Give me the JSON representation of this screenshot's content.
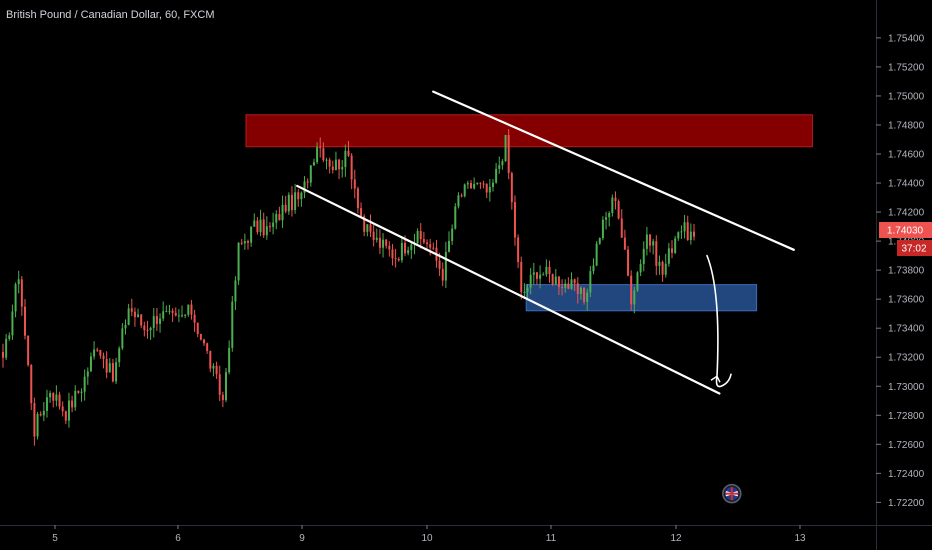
{
  "chart_data": {
    "type": "candlestick",
    "title": "British Pound / Canadian Dollar, 60, FXCM",
    "ylim": [
      1.7212,
      1.7553
    ],
    "y_ticks": [
      "1.75400",
      "1.75200",
      "1.75000",
      "1.74800",
      "1.74600",
      "1.74400",
      "1.74200",
      "1.74000",
      "1.73800",
      "1.73600",
      "1.73400",
      "1.73200",
      "1.73000",
      "1.72800",
      "1.72600",
      "1.72400",
      "1.72200"
    ],
    "x_ticks": [
      "5",
      "6",
      "9",
      "10",
      "11",
      "12",
      "13"
    ],
    "last_price": {
      "value": "1.74030",
      "countdown": "37:02",
      "color": "#ef5350"
    },
    "colors": {
      "up": "#26a69a",
      "down": "#ef5350",
      "up_bright": "#4caf50"
    },
    "anchors": [
      1.7315,
      1.7378,
      1.727,
      1.7298,
      1.7282,
      1.73,
      1.733,
      1.7305,
      1.7355,
      1.734,
      1.735,
      1.7345,
      1.7352,
      1.7322,
      1.729,
      1.7395,
      1.741,
      1.7408,
      1.7425,
      1.743,
      1.7468,
      1.7452,
      1.7458,
      1.7408,
      1.7398,
      1.739,
      1.7402,
      1.74,
      1.7378,
      1.743,
      1.744,
      1.7432,
      1.7468,
      1.7362,
      1.738,
      1.7375,
      1.737,
      1.736,
      1.7405,
      1.7432,
      1.7362,
      1.7405,
      1.7378,
      1.741,
      1.7403
    ],
    "zones": [
      {
        "name": "supply-zone",
        "top": 1.7487,
        "bottom": 1.7465,
        "x_start": 7.2,
        "x_end": 13.1,
        "fill": "#8b0000",
        "stroke": "#b71c1c"
      },
      {
        "name": "demand-zone",
        "top": 1.737,
        "bottom": 1.7352,
        "x_start": 10.8,
        "x_end": 12.65,
        "fill": "#244a85",
        "stroke": "#3d6cc0"
      }
    ],
    "channel_lines": [
      {
        "name": "upper-channel-line",
        "x1": 10.05,
        "y1": 1.7503,
        "x2": 12.95,
        "y2": 1.7394
      },
      {
        "name": "lower-channel-line",
        "x1": 8.85,
        "y1": 1.7438,
        "x2": 12.35,
        "y2": 1.7295
      }
    ],
    "projection_arrow": {
      "x1": 12.25,
      "y1": 1.739,
      "x2": 12.33,
      "y2": 1.73
    },
    "flag_marker": {
      "x": 12.45,
      "y": 1.7226
    }
  }
}
